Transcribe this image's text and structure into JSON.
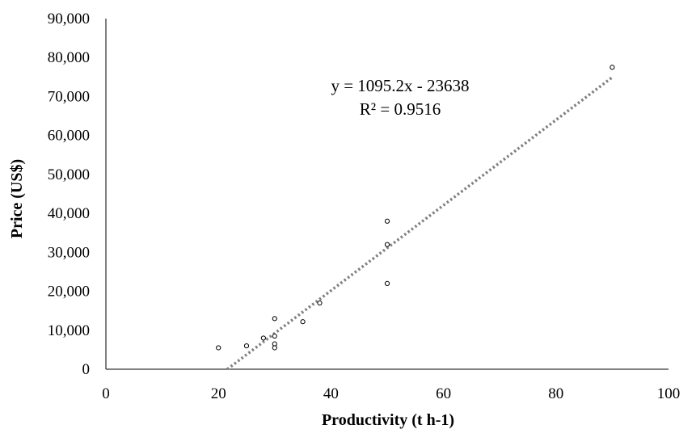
{
  "chart_data": {
    "type": "scatter",
    "title": "",
    "xlabel": "Productivity (t h-1)",
    "ylabel": "Price (US$)",
    "xlim": [
      0,
      100
    ],
    "ylim": [
      0,
      90000
    ],
    "x_ticks": [
      0,
      20,
      40,
      60,
      80,
      100
    ],
    "x_tick_labels": [
      "0",
      "20",
      "40",
      "60",
      "80",
      "100"
    ],
    "y_ticks": [
      0,
      10000,
      20000,
      30000,
      40000,
      50000,
      60000,
      70000,
      80000,
      90000
    ],
    "y_tick_labels": [
      "0",
      "10,000",
      "20,000",
      "30,000",
      "40,000",
      "50,000",
      "60,000",
      "70,000",
      "80,000",
      "90,000"
    ],
    "grid": false,
    "legend": "none",
    "series": [
      {
        "points": [
          {
            "x": 20,
            "y": 5500
          },
          {
            "x": 25,
            "y": 6000
          },
          {
            "x": 28,
            "y": 8000
          },
          {
            "x": 30,
            "y": 13000
          },
          {
            "x": 30,
            "y": 8500
          },
          {
            "x": 30,
            "y": 6500
          },
          {
            "x": 30,
            "y": 5500
          },
          {
            "x": 35,
            "y": 12200
          },
          {
            "x": 38,
            "y": 17000
          },
          {
            "x": 50,
            "y": 38000
          },
          {
            "x": 50,
            "y": 32000
          },
          {
            "x": 50,
            "y": 22000
          },
          {
            "x": 90,
            "y": 77500
          }
        ],
        "marker_color": "#000000"
      }
    ],
    "trendline": {
      "type": "linear",
      "slope": 1095.2,
      "intercept": -23638,
      "x_range": [
        21.58,
        90
      ],
      "color": "#808080",
      "style": "dotted"
    },
    "annotations": [
      {
        "text": "y = 1095.2x - 23638"
      },
      {
        "text": "R² = 0.9516"
      }
    ]
  }
}
